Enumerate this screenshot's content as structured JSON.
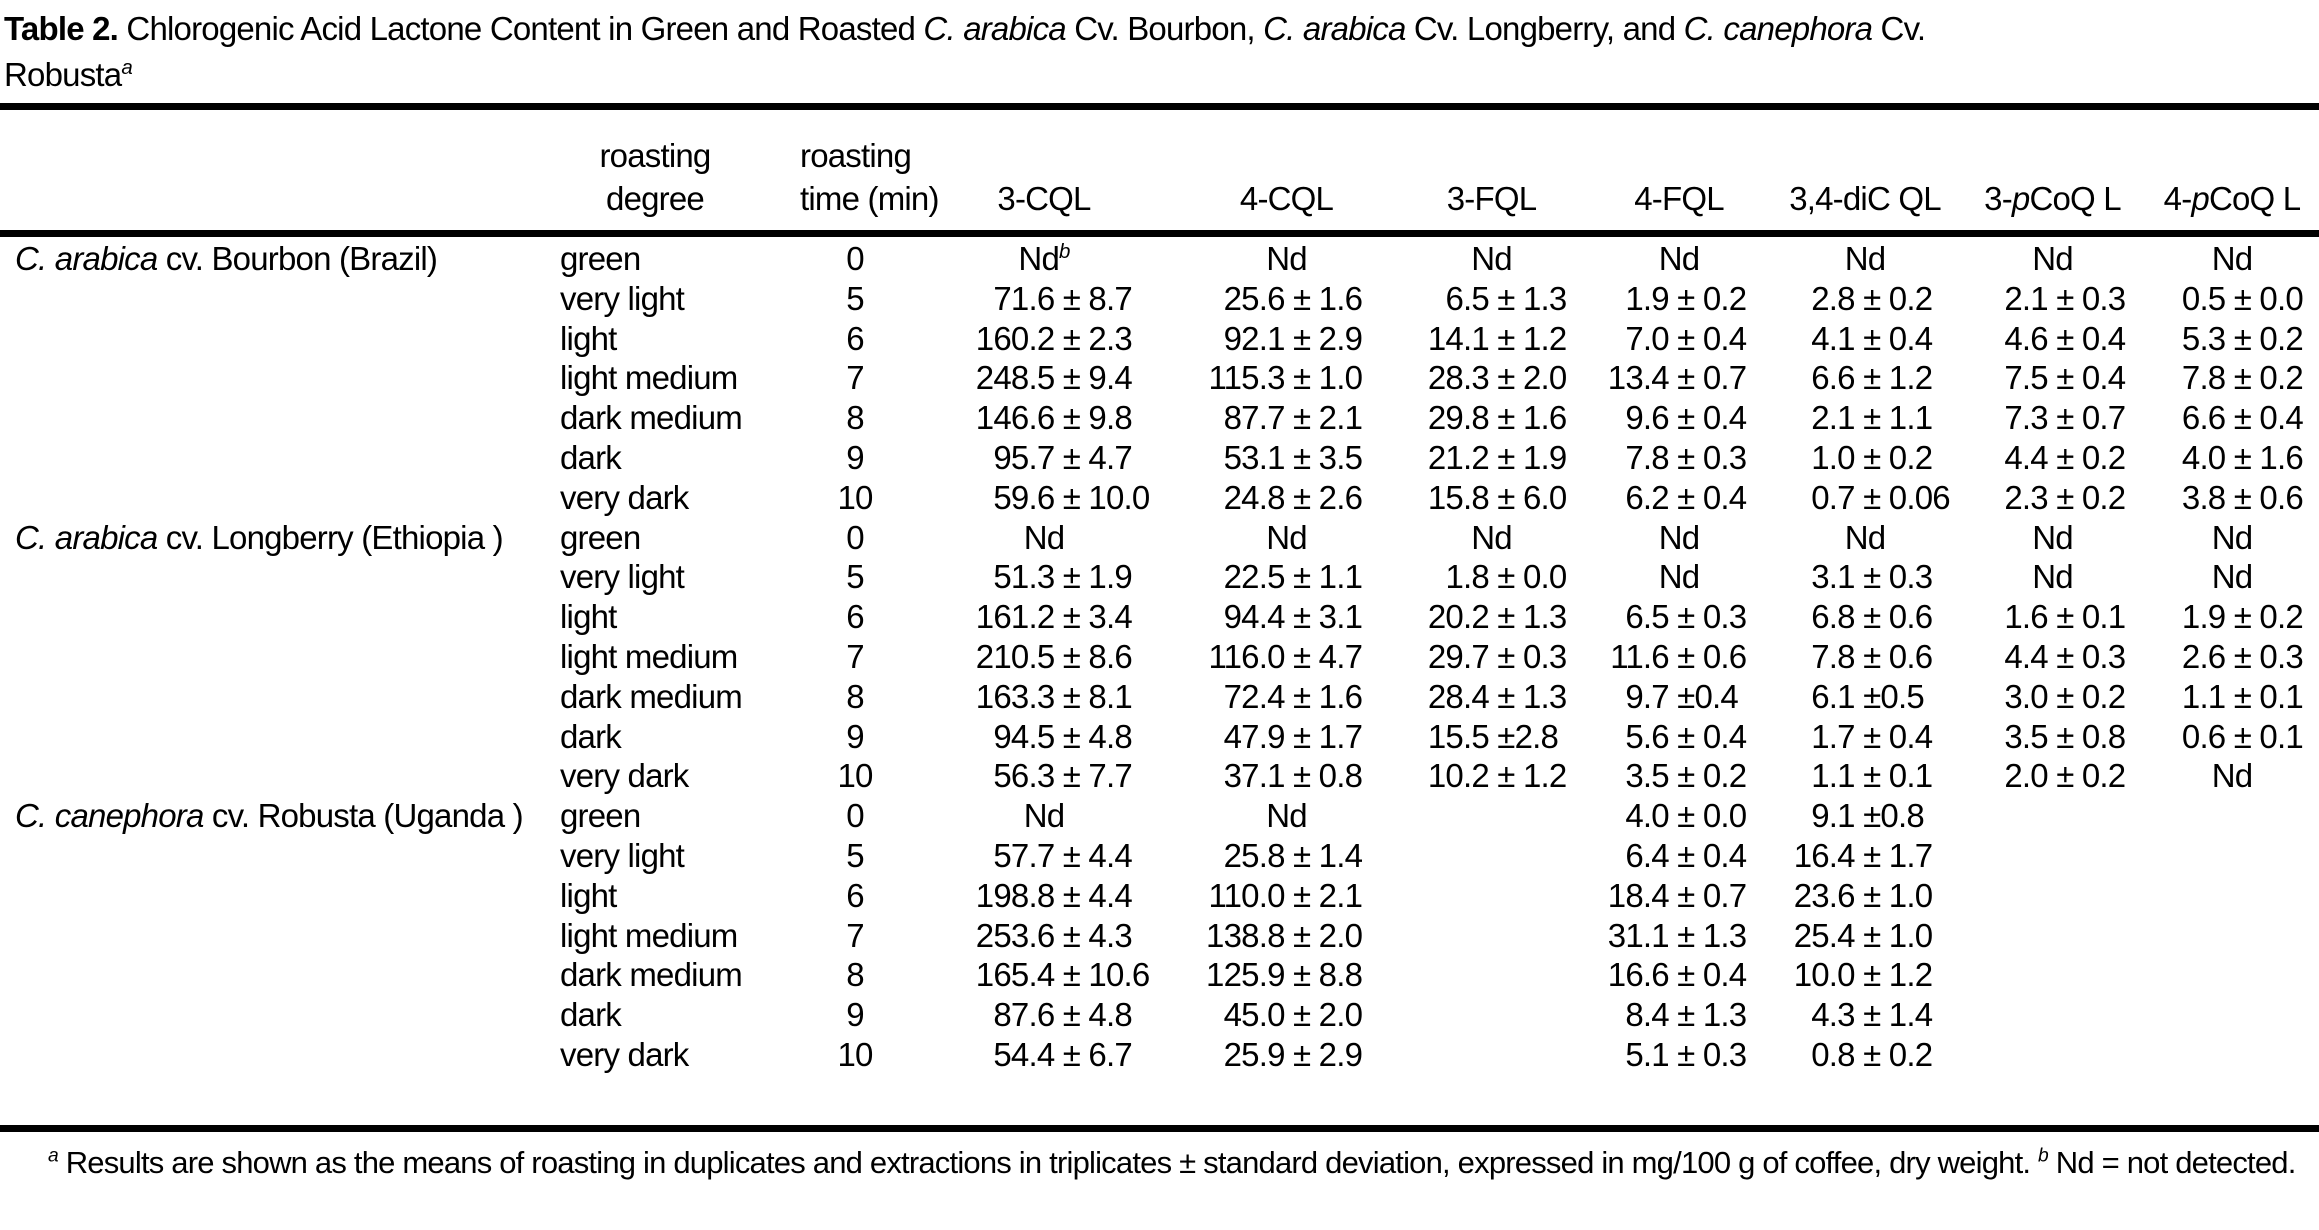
{
  "title": {
    "segments": [
      {
        "t": "Table 2. ",
        "b": true
      },
      {
        "t": "Chlorogenic Acid Lactone Content in Green and Roasted "
      },
      {
        "t": "C. arabica",
        "i": true
      },
      {
        "t": " Cv. Bourbon, "
      },
      {
        "t": "C. arabica",
        "i": true
      },
      {
        "t": " Cv. Longberry, and "
      },
      {
        "t": "C. canephora",
        "i": true
      },
      {
        "t": " Cv.",
        "br": true
      },
      {
        "t": "Robusta"
      },
      {
        "t": "a",
        "sup": true
      }
    ]
  },
  "table": {
    "col_headers": [
      {
        "lines": [
          [
            {
              "t": "roasting"
            }
          ],
          [
            {
              "t": "degree"
            }
          ]
        ],
        "cls": "h-degree"
      },
      {
        "lines": [
          [
            {
              "t": "roasting"
            }
          ],
          [
            {
              "t": "time (min)"
            }
          ]
        ]
      },
      {
        "lines": [
          [
            {
              "t": "3-CQL"
            }
          ]
        ]
      },
      {
        "lines": [
          [
            {
              "t": "4-CQL"
            }
          ]
        ]
      },
      {
        "lines": [
          [
            {
              "t": "3-FQL"
            }
          ]
        ]
      },
      {
        "lines": [
          [
            {
              "t": "4-FQL"
            }
          ]
        ]
      },
      {
        "lines": [
          [
            {
              "t": "3,4-diC QL"
            }
          ]
        ]
      },
      {
        "lines": [
          [
            {
              "t": "3-"
            },
            {
              "t": "p",
              "i": true
            },
            {
              "t": "CoQ L"
            }
          ]
        ]
      },
      {
        "lines": [
          [
            {
              "t": "4-"
            },
            {
              "t": "p",
              "i": true
            },
            {
              "t": "CoQ L"
            }
          ]
        ]
      }
    ],
    "groups": [
      {
        "species": [
          {
            "t": "C. arabica",
            "i": true
          },
          {
            "t": " cv. Bourbon (Brazil)"
          }
        ],
        "rows": [
          {
            "degree": "green",
            "time": "0",
            "values": [
              "Nd^b",
              "Nd",
              "Nd",
              "Nd",
              "Nd",
              "Nd",
              "Nd"
            ]
          },
          {
            "degree": "very light",
            "time": "5",
            "values": [
              "71.6 ± 8.7",
              "25.6 ± 1.6",
              "6.5 ± 1.3",
              "1.9 ± 0.2",
              "2.8 ± 0.2",
              "2.1 ± 0.3",
              "0.5 ± 0.0"
            ]
          },
          {
            "degree": "light",
            "time": "6",
            "values": [
              "160.2 ± 2.3",
              "92.1 ± 2.9",
              "14.1 ± 1.2",
              "7.0 ± 0.4",
              "4.1 ± 0.4",
              "4.6 ± 0.4",
              "5.3 ± 0.2"
            ]
          },
          {
            "degree": "light medium",
            "time": "7",
            "values": [
              "248.5 ± 9.4",
              "115.3 ± 1.0",
              "28.3 ± 2.0",
              "13.4 ± 0.7",
              "6.6 ± 1.2",
              "7.5 ± 0.4",
              "7.8 ± 0.2"
            ]
          },
          {
            "degree": "dark medium",
            "time": "8",
            "values": [
              "146.6 ± 9.8",
              "87.7 ± 2.1",
              "29.8 ± 1.6",
              "9.6 ± 0.4",
              "2.1 ± 1.1",
              "7.3 ± 0.7",
              "6.6 ± 0.4"
            ]
          },
          {
            "degree": "dark",
            "time": "9",
            "values": [
              "95.7 ± 4.7",
              "53.1 ± 3.5",
              "21.2 ± 1.9",
              "7.8 ± 0.3",
              "1.0 ± 0.2",
              "4.4 ± 0.2",
              "4.0 ± 1.6"
            ]
          },
          {
            "degree": "very dark",
            "time": "10",
            "values": [
              "59.6 ± 10.0",
              "24.8 ± 2.6",
              "15.8 ± 6.0",
              "6.2 ± 0.4",
              "0.7 ± 0.06",
              "2.3 ± 0.2",
              "3.8 ± 0.6"
            ]
          }
        ]
      },
      {
        "species": [
          {
            "t": "C. arabica",
            "i": true
          },
          {
            "t": " cv. Longberry (Ethiopia )"
          }
        ],
        "rows": [
          {
            "degree": "green",
            "time": "0",
            "values": [
              "Nd",
              "Nd",
              "Nd",
              "Nd",
              "Nd",
              "Nd",
              "Nd"
            ]
          },
          {
            "degree": "very light",
            "time": "5",
            "values": [
              "51.3 ± 1.9",
              "22.5 ± 1.1",
              "1.8 ± 0.0",
              "Nd",
              "3.1 ± 0.3",
              "Nd",
              "Nd"
            ]
          },
          {
            "degree": "light",
            "time": "6",
            "values": [
              "161.2 ± 3.4",
              "94.4 ± 3.1",
              "20.2 ± 1.3",
              "6.5 ± 0.3",
              "6.8 ± 0.6",
              "1.6 ± 0.1",
              "1.9 ± 0.2"
            ]
          },
          {
            "degree": "light medium",
            "time": "7",
            "values": [
              "210.5 ± 8.6",
              "116.0 ± 4.7",
              "29.7 ± 0.3",
              "11.6 ± 0.6",
              "7.8 ± 0.6",
              "4.4 ± 0.3",
              "2.6 ± 0.3"
            ]
          },
          {
            "degree": "dark medium",
            "time": "8",
            "values": [
              "163.3 ± 8.1",
              "72.4 ± 1.6",
              "28.4 ± 1.3",
              "9.7 ±0.4",
              "6.1 ±0.5",
              "3.0 ± 0.2",
              "1.1 ± 0.1"
            ]
          },
          {
            "degree": "dark",
            "time": "9",
            "values": [
              "94.5 ± 4.8",
              "47.9 ± 1.7",
              "15.5 ±2.8",
              "5.6 ± 0.4",
              "1.7 ± 0.4",
              "3.5 ± 0.8",
              "0.6 ± 0.1"
            ]
          },
          {
            "degree": "very dark",
            "time": "10",
            "values": [
              "56.3 ± 7.7",
              "37.1 ± 0.8",
              "10.2 ± 1.2",
              "3.5 ± 0.2",
              "1.1 ± 0.1",
              "2.0 ± 0.2",
              "Nd"
            ]
          }
        ]
      },
      {
        "species": [
          {
            "t": "C. canephora",
            "i": true
          },
          {
            "t": " cv. Robusta (Uganda )"
          }
        ],
        "rows": [
          {
            "degree": "green",
            "time": "0",
            "values": [
              "Nd",
              "Nd",
              "",
              "4.0 ± 0.0",
              "9.1 ±0.8",
              "",
              ""
            ]
          },
          {
            "degree": "very light",
            "time": "5",
            "values": [
              "57.7 ± 4.4",
              "25.8 ± 1.4",
              "",
              "6.4 ± 0.4",
              "16.4 ± 1.7",
              "",
              ""
            ]
          },
          {
            "degree": "light",
            "time": "6",
            "values": [
              "198.8 ± 4.4",
              "110.0 ± 2.1",
              "",
              "18.4 ± 0.7",
              "23.6 ± 1.0",
              "",
              ""
            ]
          },
          {
            "degree": "light medium",
            "time": "7",
            "values": [
              "253.6 ± 4.3",
              "138.8 ± 2.0",
              "",
              "31.1 ± 1.3",
              "25.4 ± 1.0",
              "",
              ""
            ]
          },
          {
            "degree": "dark medium",
            "time": "8",
            "values": [
              "165.4 ± 10.6",
              "125.9 ± 8.8",
              "",
              "16.6 ± 0.4",
              "10.0 ± 1.2",
              "",
              ""
            ]
          },
          {
            "degree": "dark",
            "time": "9",
            "values": [
              "87.6 ± 4.8",
              "45.0 ± 2.0",
              "",
              "8.4 ± 1.3",
              "4.3 ± 1.4",
              "",
              ""
            ]
          },
          {
            "degree": "very dark",
            "time": "10",
            "values": [
              "54.4 ± 6.7",
              "25.9 ± 2.9",
              "",
              "5.1 ± 0.3",
              "0.8 ± 0.2",
              "",
              ""
            ]
          }
        ]
      }
    ]
  },
  "footnote": {
    "segments": [
      {
        "t": "a",
        "sup": true
      },
      {
        "t": " Results are shown as the means of roasting in duplicates and extractions in triplicates ± standard deviation, expressed in mg/100 g of coffee, dry weight. "
      },
      {
        "t": "b",
        "sup": true
      },
      {
        "t": " Nd = not detected."
      }
    ]
  }
}
